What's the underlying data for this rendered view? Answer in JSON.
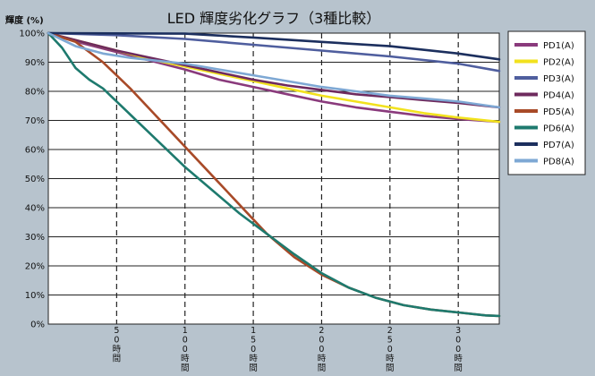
{
  "chart_data": {
    "type": "line",
    "title": "LED 輝度劣化グラフ（3種比較）",
    "ylabel": "輝度 (%)",
    "xlabel": "",
    "ylim": [
      0,
      100
    ],
    "xlim": [
      0,
      330
    ],
    "y_ticks": [
      {
        "value": 100,
        "label": "100%"
      },
      {
        "value": 90,
        "label": "90%"
      },
      {
        "value": 80,
        "label": "80%"
      },
      {
        "value": 70,
        "label": "70%"
      },
      {
        "value": 60,
        "label": "60%"
      },
      {
        "value": 50,
        "label": "50%"
      },
      {
        "value": 40,
        "label": "40%"
      },
      {
        "value": 30,
        "label": "30%"
      },
      {
        "value": 20,
        "label": "20%"
      },
      {
        "value": 10,
        "label": "10%"
      },
      {
        "value": 0,
        "label": "0%"
      }
    ],
    "x_ticks": [
      {
        "value": 50,
        "label": "50時間"
      },
      {
        "value": 100,
        "label": "100時間"
      },
      {
        "value": 150,
        "label": "150時間"
      },
      {
        "value": 200,
        "label": "200時間"
      },
      {
        "value": 250,
        "label": "250時間"
      },
      {
        "value": 300,
        "label": "300時間"
      }
    ],
    "grid": true,
    "legend_position": "right",
    "series": [
      {
        "name": "PD1(A)",
        "color": "#8a3a7c",
        "x": [
          0,
          25,
          50,
          75,
          100,
          125,
          150,
          175,
          200,
          225,
          250,
          275,
          300,
          330
        ],
        "y": [
          100,
          96.5,
          93.5,
          90.5,
          87.5,
          84,
          81.5,
          79,
          76.5,
          74.5,
          73,
          71.5,
          70.5,
          69.5
        ]
      },
      {
        "name": "PD2(A)",
        "color": "#f2e21e",
        "x": [
          0,
          25,
          50,
          75,
          100,
          125,
          150,
          175,
          200,
          225,
          250,
          275,
          300,
          330
        ],
        "y": [
          100,
          97,
          94,
          91,
          88.5,
          86,
          83.5,
          81,
          78.5,
          76.5,
          74.5,
          72.5,
          71,
          69.5
        ]
      },
      {
        "name": "PD3(A)",
        "color": "#4f5e9e",
        "x": [
          0,
          50,
          100,
          150,
          200,
          250,
          300,
          330
        ],
        "y": [
          100,
          99.3,
          98,
          96,
          94,
          92,
          89.5,
          87
        ]
      },
      {
        "name": "PD4(A)",
        "color": "#6e2a5e",
        "x": [
          0,
          25,
          50,
          75,
          100,
          125,
          150,
          175,
          200,
          225,
          250,
          275,
          300,
          330
        ],
        "y": [
          100,
          97,
          94,
          91.5,
          89,
          86.5,
          84,
          82,
          80.5,
          79,
          78,
          77,
          76,
          74.5
        ]
      },
      {
        "name": "PD5(A)",
        "color": "#a84a28",
        "x": [
          0,
          20,
          40,
          60,
          80,
          100,
          120,
          140,
          160,
          180,
          200,
          220,
          240,
          260,
          280,
          300,
          320,
          330
        ],
        "y": [
          100,
          97,
          90,
          81,
          71,
          61,
          51,
          41,
          31,
          23,
          17,
          12.5,
          9,
          6.5,
          5,
          4,
          3,
          2.8
        ]
      },
      {
        "name": "PD6(A)",
        "color": "#1e7a6e",
        "x": [
          0,
          10,
          20,
          30,
          40,
          60,
          80,
          100,
          120,
          140,
          160,
          180,
          200,
          220,
          240,
          260,
          280,
          300,
          320,
          330
        ],
        "y": [
          100,
          95,
          88,
          84,
          81,
          72,
          63,
          54,
          46,
          38,
          31,
          24,
          17.5,
          12.5,
          9,
          6.5,
          5,
          4,
          3,
          2.8
        ]
      },
      {
        "name": "PD7(A)",
        "color": "#1c2f5e",
        "x": [
          0,
          100,
          150,
          200,
          250,
          300,
          330
        ],
        "y": [
          100,
          99.8,
          98.5,
          97,
          95.5,
          93,
          91
        ]
      },
      {
        "name": "PD8(A)",
        "color": "#7ea8d4",
        "x": [
          0,
          20,
          40,
          60,
          80,
          100,
          125,
          150,
          175,
          200,
          225,
          250,
          275,
          300,
          330
        ],
        "y": [
          100,
          95.5,
          93,
          91.5,
          90.5,
          89.5,
          87.5,
          85.5,
          83.5,
          81.5,
          80,
          78.5,
          77.5,
          76.5,
          74.5
        ]
      }
    ]
  }
}
